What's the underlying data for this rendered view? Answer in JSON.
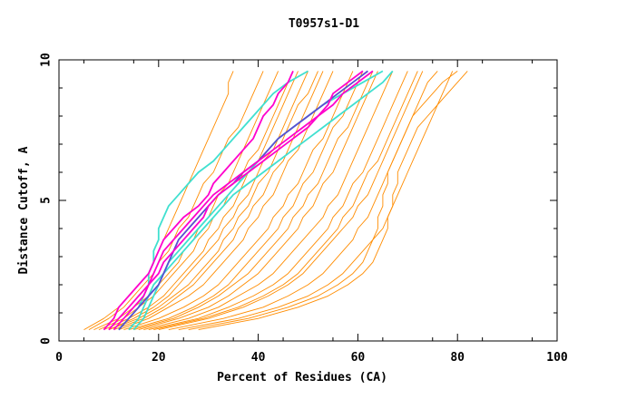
{
  "chart_data": {
    "type": "line",
    "title": "T0957s1-D1",
    "xlabel": "Percent of Residues (CA)",
    "ylabel": "Distance Cutoff, A",
    "xlim": [
      0,
      100
    ],
    "ylim": [
      0,
      10
    ],
    "x_ticks": [
      0,
      20,
      40,
      60,
      80,
      100
    ],
    "y_ticks": [
      0,
      5,
      10
    ],
    "grid": false,
    "colors": {
      "bulk": "#ff8c00",
      "highlight_magenta": "#ff00cc",
      "highlight_cyan": "#40e0d0",
      "highlight_blue": "#5a4fd0"
    },
    "y_levels": [
      0.4,
      0.8,
      1.2,
      1.6,
      2.0,
      2.4,
      2.8,
      3.2,
      3.6,
      4.0,
      4.4,
      4.8,
      5.2,
      5.6,
      6.0,
      6.4,
      6.8,
      7.2,
      7.6,
      8.0,
      8.4,
      8.8,
      9.2,
      9.6
    ],
    "series": [
      {
        "group": "bulk",
        "x": [
          5,
          9,
          12,
          14,
          16,
          18,
          19,
          20,
          21,
          22,
          23,
          24,
          25,
          26,
          27,
          28,
          29,
          30,
          31,
          32,
          33,
          34,
          34,
          35
        ]
      },
      {
        "group": "bulk",
        "x": [
          7,
          12,
          15,
          18,
          20,
          22,
          24,
          25,
          27,
          28,
          30,
          31,
          32,
          34,
          35,
          36,
          37,
          38,
          39,
          40,
          41,
          42,
          43,
          44
        ]
      },
      {
        "group": "bulk",
        "x": [
          9,
          14,
          18,
          21,
          23,
          25,
          27,
          29,
          30,
          32,
          33,
          35,
          36,
          37,
          38,
          40,
          41,
          42,
          43,
          44,
          45,
          46,
          47,
          48
        ]
      },
      {
        "group": "bulk",
        "x": [
          10,
          16,
          20,
          23,
          26,
          28,
          30,
          32,
          33,
          35,
          36,
          38,
          39,
          40,
          42,
          43,
          44,
          45,
          46,
          47,
          48,
          50,
          51,
          52
        ]
      },
      {
        "group": "bulk",
        "x": [
          12,
          18,
          22,
          26,
          29,
          31,
          33,
          35,
          37,
          38,
          40,
          41,
          43,
          44,
          45,
          46,
          48,
          49,
          50,
          51,
          52,
          53,
          54,
          55
        ]
      },
      {
        "group": "bulk",
        "x": [
          13,
          20,
          25,
          29,
          32,
          34,
          36,
          38,
          40,
          42,
          43,
          45,
          46,
          48,
          49,
          50,
          51,
          53,
          54,
          55,
          56,
          57,
          58,
          59
        ]
      },
      {
        "group": "bulk",
        "x": [
          15,
          23,
          28,
          32,
          35,
          38,
          40,
          42,
          44,
          46,
          47,
          49,
          50,
          52,
          53,
          54,
          55,
          56,
          58,
          59,
          60,
          61,
          62,
          63
        ]
      },
      {
        "group": "bulk",
        "x": [
          17,
          26,
          32,
          36,
          40,
          43,
          45,
          47,
          49,
          51,
          53,
          54,
          56,
          57,
          58,
          59,
          60,
          61,
          62,
          63,
          64,
          65,
          66,
          67
        ]
      },
      {
        "group": "bulk",
        "x": [
          20,
          30,
          37,
          42,
          46,
          49,
          51,
          53,
          55,
          57,
          59,
          60,
          62,
          63,
          64,
          65,
          66,
          67,
          68,
          69,
          70,
          71,
          72,
          73
        ]
      },
      {
        "group": "bulk",
        "x": [
          24,
          36,
          44,
          50,
          54,
          57,
          59,
          61,
          63,
          65,
          66,
          67,
          68,
          69,
          70,
          71,
          72,
          73,
          74,
          75,
          76,
          77,
          78,
          79
        ]
      },
      {
        "group": "bulk",
        "x": [
          28,
          40,
          48,
          54,
          58,
          61,
          63,
          64,
          65,
          66,
          66,
          67,
          67,
          68,
          68,
          69,
          70,
          71,
          72,
          74,
          76,
          78,
          80,
          82
        ]
      },
      {
        "group": "bulk",
        "x": [
          8,
          13,
          16,
          19,
          21,
          23,
          25,
          27,
          28,
          30,
          31,
          33,
          34,
          36,
          37,
          38,
          40,
          41,
          42,
          43,
          44,
          45,
          46,
          47
        ]
      },
      {
        "group": "bulk",
        "x": [
          11,
          17,
          21,
          24,
          27,
          29,
          31,
          33,
          35,
          36,
          38,
          39,
          41,
          42,
          43,
          45,
          46,
          47,
          48,
          49,
          50,
          51,
          52,
          53
        ]
      },
      {
        "group": "bulk",
        "x": [
          14,
          22,
          27,
          31,
          34,
          36,
          38,
          40,
          42,
          44,
          45,
          47,
          48,
          49,
          51,
          52,
          53,
          54,
          55,
          57,
          58,
          59,
          60,
          61
        ]
      },
      {
        "group": "bulk",
        "x": [
          18,
          28,
          34,
          39,
          43,
          46,
          48,
          50,
          52,
          54,
          55,
          57,
          58,
          59,
          61,
          62,
          63,
          64,
          65,
          66,
          67,
          68,
          69,
          70
        ]
      },
      {
        "group": "bulk",
        "x": [
          22,
          33,
          41,
          46,
          50,
          53,
          55,
          57,
          59,
          60,
          62,
          63,
          64,
          65,
          66,
          67,
          68,
          69,
          70,
          71,
          72,
          73,
          74,
          76
        ]
      },
      {
        "group": "bulk",
        "x": [
          6,
          10,
          13,
          15,
          17,
          19,
          20,
          22,
          23,
          24,
          26,
          27,
          28,
          29,
          31,
          32,
          33,
          34,
          36,
          37,
          38,
          39,
          40,
          41
        ]
      },
      {
        "group": "bulk",
        "x": [
          16,
          24,
          30,
          34,
          37,
          40,
          42,
          44,
          46,
          48,
          49,
          51,
          52,
          53,
          55,
          56,
          57,
          58,
          59,
          60,
          61,
          62,
          63,
          64
        ]
      },
      {
        "group": "bulk",
        "x": [
          26,
          38,
          46,
          52,
          56,
          59,
          61,
          62,
          63,
          64,
          64,
          65,
          65,
          66,
          66,
          67,
          68,
          69,
          70,
          71,
          73,
          75,
          77,
          80
        ]
      },
      {
        "group": "bulk",
        "x": [
          10,
          15,
          19,
          22,
          24,
          26,
          28,
          30,
          32,
          33,
          35,
          36,
          38,
          39,
          40,
          41,
          43,
          44,
          45,
          46,
          47,
          48,
          49,
          50
        ]
      },
      {
        "group": "bulk",
        "x": [
          19,
          29,
          36,
          41,
          45,
          48,
          50,
          52,
          54,
          56,
          57,
          59,
          60,
          61,
          62,
          64,
          65,
          66,
          67,
          68,
          69,
          70,
          71,
          72
        ]
      },
      {
        "group": "highlight_magenta",
        "x": [
          9,
          11,
          12,
          14,
          16,
          18,
          19,
          20,
          21,
          23,
          25,
          28,
          30,
          31,
          33,
          35,
          37,
          39,
          40,
          41,
          43,
          44,
          46,
          47
        ]
      },
      {
        "group": "highlight_magenta",
        "x": [
          10,
          12,
          14,
          16,
          18,
          19,
          20,
          21,
          23,
          25,
          27,
          29,
          31,
          34,
          37,
          40,
          43,
          46,
          49,
          52,
          55,
          57,
          60,
          63
        ]
      },
      {
        "group": "highlight_magenta",
        "x": [
          11,
          13,
          15,
          17,
          18,
          20,
          21,
          23,
          25,
          27,
          29,
          30,
          32,
          35,
          38,
          41,
          44,
          47,
          50,
          52,
          54,
          55,
          58,
          61
        ]
      },
      {
        "group": "highlight_cyan",
        "x": [
          12,
          14,
          16,
          17,
          18,
          18,
          19,
          19,
          20,
          20,
          21,
          22,
          24,
          26,
          28,
          31,
          33,
          35,
          37,
          39,
          41,
          43,
          46,
          50
        ]
      },
      {
        "group": "highlight_cyan",
        "x": [
          14,
          16,
          17,
          18,
          19,
          21,
          23,
          25,
          27,
          29,
          31,
          33,
          35,
          38,
          41,
          44,
          47,
          50,
          53,
          56,
          59,
          62,
          65,
          67
        ]
      },
      {
        "group": "highlight_cyan",
        "x": [
          15,
          17,
          18,
          19,
          20,
          21,
          22,
          24,
          26,
          28,
          30,
          32,
          34,
          36,
          38,
          40,
          42,
          44,
          47,
          50,
          53,
          57,
          61,
          65
        ]
      },
      {
        "group": "highlight_blue",
        "x": [
          12,
          14,
          16,
          18,
          20,
          21,
          22,
          23,
          24,
          26,
          28,
          30,
          32,
          35,
          37,
          40,
          42,
          44,
          47,
          50,
          53,
          56,
          59,
          62
        ]
      }
    ]
  }
}
